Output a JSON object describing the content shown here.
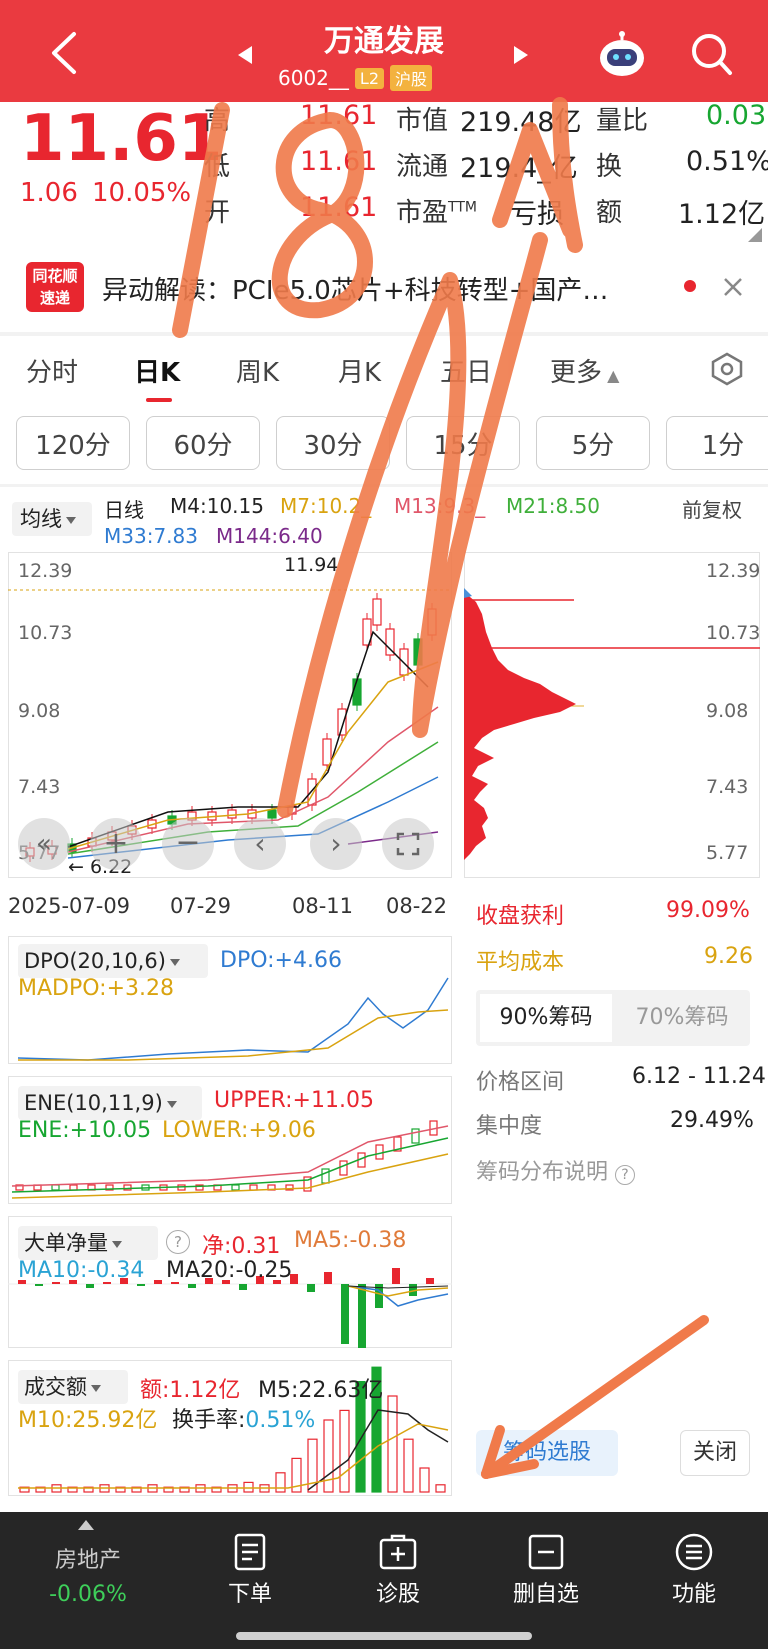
{
  "header": {
    "title": "万通发展",
    "code": "6002__",
    "badge_l2": "L2",
    "badge_market": "沪股"
  },
  "quote": {
    "price": "11.61",
    "change": "1.06",
    "change_pct": "10.05%",
    "high_label": "高",
    "high_value": "11.61",
    "low_label": "低",
    "low_value": "11.61",
    "open_label": "开",
    "open_value": "11.61",
    "mcap_label": "市值",
    "mcap_value": "219.48亿",
    "float_label": "流通",
    "float_value": "219.4_亿",
    "pe_label": "市盈",
    "pe_sup": "TTM",
    "pe_value": "亏损",
    "vr_label": "量比",
    "vr_value": "0.03",
    "turnover_label": "换",
    "turnover_value": "0.51%",
    "amount_label": "额",
    "amount_value": "1.12亿"
  },
  "news": {
    "logo_line1": "同花顺",
    "logo_line2": "速递",
    "text": "异动解读：PCIe5.0芯片+科技转型+国产…"
  },
  "tabs": [
    "分时",
    "日K",
    "周K",
    "月K",
    "五日",
    "更多"
  ],
  "active_tab": 1,
  "intervals": [
    "120分",
    "60分",
    "30分",
    "15分",
    "5分",
    "1分"
  ],
  "ma_bar": {
    "selector": "均线",
    "period": "日线",
    "m4": "M4:10.15",
    "m7": "M7:10.2_",
    "m13": "M13:9.3_",
    "m21": "M21:8.50",
    "adjust": "前复权",
    "m33": "M33:7.83",
    "m144": "M144:6.40"
  },
  "kline": {
    "y_ticks": [
      "12.39",
      "10.73",
      "9.08",
      "7.43",
      "5.77"
    ],
    "high_marker": "11.94",
    "low_marker": "6.22",
    "x_ticks": [
      "2025-07-09",
      "07-29",
      "08-11",
      "08-22"
    ]
  },
  "dpo": {
    "selector": "DPO(20,10,6)",
    "dpo": "DPO:+4.66",
    "madpo": "MADPO:+3.28"
  },
  "ene": {
    "selector": "ENE(10,11,9)",
    "upper": "UPPER:+11.05",
    "ene": "ENE:+10.05",
    "lower": "LOWER:+9.06"
  },
  "bigorder": {
    "selector": "大单净量",
    "net": "净:0.31",
    "ma5": "MA5:-0.38",
    "ma10": "MA10:-0.34",
    "ma20": "MA20:-0.25"
  },
  "amount": {
    "selector": "成交额",
    "amt": "额:1.12亿",
    "m5": "M5:22.63亿",
    "m10": "M10:25.92亿",
    "turnover_label": "换手率:",
    "turnover": "0.51%"
  },
  "chips": {
    "profit_label": "收盘获利",
    "profit_value": "99.09%",
    "avg_cost_label": "平均成本",
    "avg_cost_value": "9.26",
    "tab90": "90%筹码",
    "tab70": "70%筹码",
    "range_label": "价格区间",
    "range_value": "6.12 - 11.24",
    "conc_label": "集中度",
    "conc_value": "29.49%",
    "explain": "筹码分布说明",
    "select_btn": "筹码选股",
    "close_btn": "关闭"
  },
  "bottom": {
    "sector_name": "房地产",
    "sector_change": "-0.06%",
    "order": "下单",
    "diagnose": "诊股",
    "remove": "删自选",
    "func": "功能"
  },
  "colors": {
    "header": "#ea3a40",
    "up": "#e8262f",
    "down": "#17a631",
    "annotation": "#f07a4a"
  }
}
